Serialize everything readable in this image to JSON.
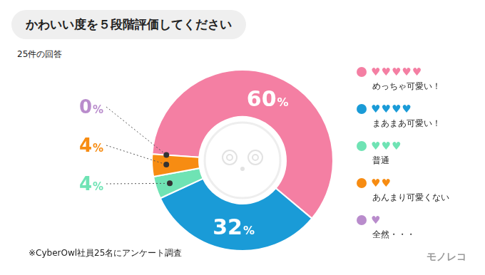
{
  "chart_data": {
    "type": "doughnut",
    "title": "かわいい度を５段階評価してください",
    "subtitle": "25件の回答",
    "categories": [
      "めっちゃ可愛い！",
      "まあまあ可愛い！",
      "普通",
      "あんまり可愛くない",
      "全然・・・"
    ],
    "legend_marks": [
      "♥♥♥♥♥",
      "♥♥♥♥",
      "♥♥♥",
      "♥♥",
      "♥"
    ],
    "values": [
      60,
      32,
      4,
      4,
      0
    ],
    "value_labels": [
      "60%",
      "32%",
      "4%",
      "4%",
      "0%"
    ],
    "colors": [
      "#f47fa3",
      "#1a9bd7",
      "#6fe3b4",
      "#f78c12",
      "#b98ccc"
    ],
    "data_labels": true,
    "legend": "right",
    "annotations": [
      "※CyberOwl社員25名にアンケート調査",
      "モノレコ"
    ]
  }
}
